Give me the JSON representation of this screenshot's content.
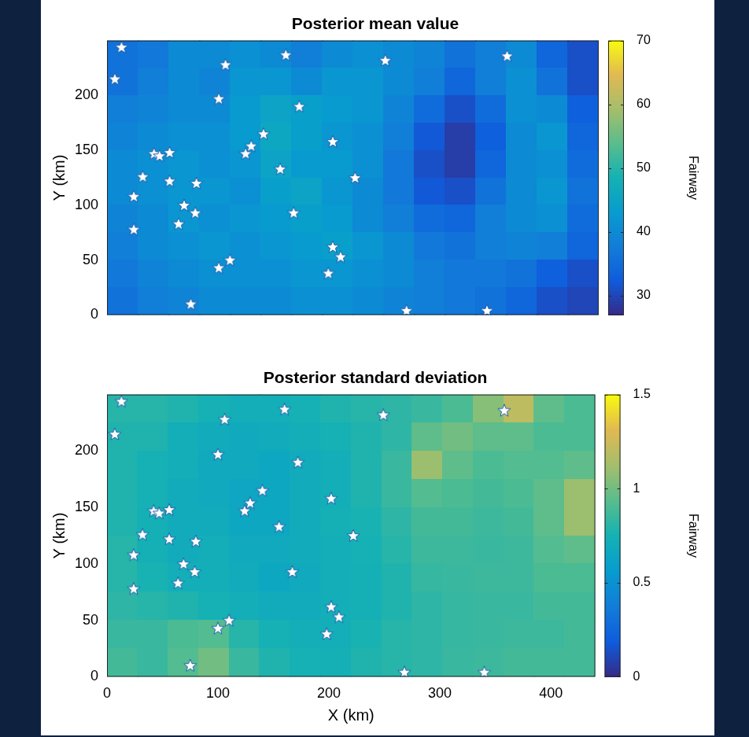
{
  "chart_data": [
    {
      "type": "heatmap",
      "title": "Posterior mean value",
      "y_label": "Y (km)",
      "xlim": [
        0,
        440
      ],
      "ylim": [
        0,
        250
      ],
      "xticks": [
        0,
        100,
        200,
        300,
        400
      ],
      "yticks": [
        0,
        50,
        100,
        150,
        200
      ],
      "grid": false,
      "tick_labels": "y",
      "x": [
        13.75,
        41.25,
        68.75,
        96.25,
        123.75,
        151.25,
        178.75,
        206.25,
        233.75,
        261.25,
        288.75,
        316.25,
        343.75,
        371.25,
        398.75,
        426.25
      ],
      "y": [
        237.5,
        212.5,
        187.5,
        162.5,
        137.5,
        112.5,
        87.5,
        62.5,
        37.5,
        12.5
      ],
      "cells": [
        [
          36,
          37,
          40,
          40,
          41,
          40,
          38,
          40,
          41,
          40,
          39,
          36,
          38,
          40,
          34,
          31
        ],
        [
          36,
          38,
          40,
          39,
          42,
          42,
          40,
          42,
          42,
          40,
          38,
          34,
          38,
          41,
          36,
          31
        ],
        [
          38,
          39,
          40,
          40,
          43,
          45,
          44,
          43,
          42,
          39,
          35,
          31,
          35,
          41,
          40,
          33
        ],
        [
          39,
          40,
          41,
          41,
          43,
          46,
          44,
          42,
          41,
          38,
          32,
          29,
          33,
          40,
          42,
          34
        ],
        [
          40,
          41,
          42,
          41,
          42,
          45,
          43,
          43,
          41,
          37,
          31,
          29,
          34,
          40,
          41,
          35
        ],
        [
          40,
          41,
          42,
          42,
          41,
          44,
          45,
          42,
          40,
          37,
          32,
          31,
          36,
          40,
          42,
          36
        ],
        [
          39,
          40,
          42,
          41,
          42,
          43,
          44,
          43,
          40,
          38,
          35,
          34,
          38,
          40,
          41,
          35
        ],
        [
          38,
          40,
          41,
          42,
          41,
          42,
          43,
          44,
          42,
          40,
          37,
          36,
          38,
          39,
          38,
          34
        ],
        [
          37,
          39,
          40,
          41,
          41,
          41,
          42,
          42,
          41,
          40,
          38,
          37,
          37,
          36,
          33,
          31
        ],
        [
          36,
          38,
          39,
          40,
          40,
          40,
          41,
          41,
          40,
          39,
          38,
          37,
          36,
          34,
          31,
          30
        ]
      ],
      "colorbar": {
        "label": "Fairway",
        "range": [
          27,
          70
        ],
        "ticks": [
          30,
          40,
          50,
          60,
          70
        ]
      },
      "points": {
        "marker": "star",
        "color": "#ffffff",
        "x": [
          13,
          7,
          106,
          160,
          249,
          358,
          100,
          172,
          140,
          42,
          47,
          56,
          129,
          124,
          202,
          32,
          56,
          80,
          155,
          222,
          24,
          69,
          79,
          64,
          167,
          24,
          202,
          209,
          198,
          110,
          100,
          75,
          268,
          340
        ],
        "y": [
          244,
          215,
          228,
          237,
          232,
          236,
          197,
          190,
          165,
          147,
          145,
          148,
          154,
          147,
          158,
          126,
          122,
          120,
          133,
          125,
          108,
          100,
          93,
          83,
          93,
          78,
          62,
          53,
          38,
          50,
          43,
          10,
          4,
          4
        ]
      }
    },
    {
      "type": "heatmap",
      "title": "Posterior standard deviation",
      "x_label": "X (km)",
      "y_label": "Y (km)",
      "xlim": [
        0,
        440
      ],
      "ylim": [
        0,
        250
      ],
      "xticks": [
        0,
        100,
        200,
        300,
        400
      ],
      "yticks": [
        0,
        50,
        100,
        150,
        200
      ],
      "grid": false,
      "x": [
        13.75,
        41.25,
        68.75,
        96.25,
        123.75,
        151.25,
        178.75,
        206.25,
        233.75,
        261.25,
        288.75,
        316.25,
        343.75,
        371.25,
        398.75,
        426.25
      ],
      "y": [
        237.5,
        212.5,
        187.5,
        162.5,
        137.5,
        112.5,
        87.5,
        62.5,
        37.5,
        12.5
      ],
      "cells": [
        [
          0.8,
          0.8,
          0.78,
          0.75,
          0.72,
          0.72,
          0.75,
          0.78,
          0.8,
          0.82,
          0.85,
          0.9,
          1.05,
          1.2,
          0.95,
          0.9
        ],
        [
          0.78,
          0.78,
          0.72,
          0.7,
          0.68,
          0.7,
          0.72,
          0.75,
          0.78,
          0.82,
          0.95,
          1.0,
          0.95,
          0.95,
          0.9,
          0.9
        ],
        [
          0.78,
          0.75,
          0.72,
          0.68,
          0.68,
          0.66,
          0.7,
          0.72,
          0.78,
          0.85,
          1.1,
          0.95,
          0.9,
          0.92,
          0.92,
          0.95
        ],
        [
          0.78,
          0.75,
          0.7,
          0.68,
          0.65,
          0.66,
          0.7,
          0.72,
          0.78,
          0.85,
          0.92,
          0.9,
          0.88,
          0.9,
          0.95,
          1.1
        ],
        [
          0.78,
          0.74,
          0.7,
          0.7,
          0.66,
          0.66,
          0.7,
          0.74,
          0.76,
          0.82,
          0.88,
          0.88,
          0.86,
          0.88,
          0.95,
          1.1
        ],
        [
          0.8,
          0.74,
          0.7,
          0.72,
          0.68,
          0.68,
          0.7,
          0.72,
          0.75,
          0.8,
          0.86,
          0.86,
          0.85,
          0.86,
          0.92,
          0.95
        ],
        [
          0.8,
          0.76,
          0.72,
          0.72,
          0.7,
          0.66,
          0.68,
          0.72,
          0.74,
          0.78,
          0.84,
          0.85,
          0.86,
          0.86,
          0.9,
          0.9
        ],
        [
          0.82,
          0.8,
          0.78,
          0.75,
          0.72,
          0.7,
          0.7,
          0.72,
          0.74,
          0.78,
          0.82,
          0.84,
          0.85,
          0.85,
          0.88,
          0.88
        ],
        [
          0.85,
          0.85,
          0.9,
          0.92,
          0.8,
          0.75,
          0.72,
          0.72,
          0.76,
          0.8,
          0.82,
          0.84,
          0.85,
          0.86,
          0.86,
          0.88
        ],
        [
          0.88,
          0.85,
          0.92,
          1.0,
          0.85,
          0.78,
          0.75,
          0.74,
          0.78,
          0.8,
          0.82,
          0.85,
          0.86,
          0.88,
          0.88,
          0.88
        ]
      ],
      "colorbar": {
        "label": "Fairway",
        "range": [
          0,
          1.5
        ],
        "ticks": [
          0,
          0.5,
          1,
          1.5
        ]
      },
      "points": {
        "marker": "star",
        "color": "#ffffff",
        "x": [
          13,
          7,
          106,
          160,
          249,
          358,
          100,
          172,
          140,
          42,
          47,
          56,
          129,
          124,
          202,
          32,
          56,
          80,
          155,
          222,
          24,
          69,
          79,
          64,
          167,
          24,
          202,
          209,
          198,
          110,
          100,
          75,
          268,
          340
        ],
        "y": [
          244,
          215,
          228,
          237,
          232,
          236,
          197,
          190,
          165,
          147,
          145,
          148,
          154,
          147,
          158,
          126,
          122,
          120,
          133,
          125,
          108,
          100,
          93,
          83,
          93,
          78,
          62,
          53,
          38,
          50,
          43,
          10,
          4,
          4
        ]
      }
    }
  ]
}
